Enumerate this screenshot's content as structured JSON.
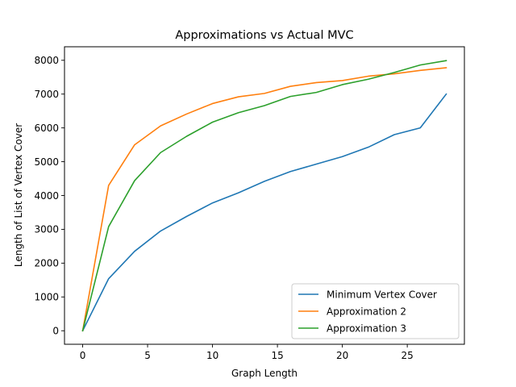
{
  "chart_data": {
    "type": "line",
    "title": "Approximations vs Actual MVC",
    "xlabel": "Graph Length",
    "ylabel": "Length of List of Vertex Cover",
    "xlim": [
      -1.4,
      29.4
    ],
    "ylim": [
      -400,
      8400
    ],
    "xticks": [
      0,
      5,
      10,
      15,
      20,
      25
    ],
    "yticks": [
      0,
      1000,
      2000,
      3000,
      4000,
      5000,
      6000,
      7000,
      8000
    ],
    "grid": false,
    "legend_position": "lower-right",
    "x": [
      0,
      2,
      4,
      6,
      8,
      10,
      12,
      14,
      16,
      18,
      20,
      22,
      24,
      26,
      28
    ],
    "series": [
      {
        "name": "Minimum Vertex Cover",
        "color": "#1f77b4",
        "values": [
          0,
          1540,
          2350,
          2950,
          3380,
          3780,
          4080,
          4420,
          4710,
          4930,
          5150,
          5430,
          5800,
          6000,
          7000
        ]
      },
      {
        "name": "Approximation 2",
        "color": "#ff7f0e",
        "values": [
          0,
          4300,
          5500,
          6060,
          6410,
          6720,
          6920,
          7020,
          7230,
          7340,
          7400,
          7530,
          7600,
          7700,
          7780
        ]
      },
      {
        "name": "Approximation 3",
        "color": "#2ca02c",
        "values": [
          0,
          3080,
          4440,
          5270,
          5750,
          6170,
          6450,
          6660,
          6930,
          7050,
          7280,
          7440,
          7640,
          7860,
          7990
        ]
      }
    ]
  }
}
